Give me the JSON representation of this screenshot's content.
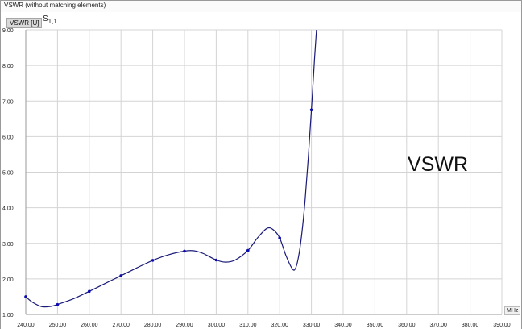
{
  "window": {
    "title": "VSWR (without matching elements)"
  },
  "badges": {
    "unit": "VSWR [U]",
    "trace_main": "S",
    "trace_sub": "1,1",
    "x_unit": "MHz"
  },
  "annotation": {
    "text": "VSWR"
  },
  "colors": {
    "curve": "#1a1a78",
    "marker": "#0b0bb0",
    "grid": "#d4d4d4"
  },
  "chart_data": {
    "type": "line",
    "title": "VSWR (without matching elements)",
    "ylabel": "VSWR [U]",
    "xlabel": "MHz",
    "xlim": [
      240,
      390
    ],
    "ylim": [
      1,
      9
    ],
    "grid": true,
    "x_ticks": [
      "240.00",
      "250.00",
      "260.00",
      "270.00",
      "280.00",
      "290.00",
      "300.00",
      "310.00",
      "320.00",
      "330.00",
      "340.00",
      "350.00",
      "360.00",
      "370.00",
      "380.00",
      "390.00"
    ],
    "y_ticks": [
      "9.00",
      "8.00",
      "7.00",
      "6.00",
      "5.00",
      "4.00",
      "3.00",
      "2.00",
      "1.00"
    ],
    "series": [
      {
        "name": "S1,1",
        "curve": [
          [
            240,
            1.5
          ],
          [
            242,
            1.35
          ],
          [
            245,
            1.22
          ],
          [
            248,
            1.23
          ],
          [
            250,
            1.28
          ],
          [
            255,
            1.44
          ],
          [
            260,
            1.65
          ],
          [
            265,
            1.87
          ],
          [
            270,
            2.09
          ],
          [
            275,
            2.31
          ],
          [
            280,
            2.52
          ],
          [
            285,
            2.68
          ],
          [
            290,
            2.78
          ],
          [
            293,
            2.79
          ],
          [
            296,
            2.71
          ],
          [
            300,
            2.53
          ],
          [
            303,
            2.47
          ],
          [
            306,
            2.53
          ],
          [
            310,
            2.8
          ],
          [
            313,
            3.15
          ],
          [
            316,
            3.42
          ],
          [
            318,
            3.38
          ],
          [
            320,
            3.15
          ],
          [
            322,
            2.65
          ],
          [
            324,
            2.28
          ],
          [
            325,
            2.3
          ],
          [
            326,
            2.65
          ],
          [
            327,
            3.3
          ],
          [
            328,
            4.2
          ],
          [
            329,
            5.4
          ],
          [
            330,
            6.75
          ],
          [
            331,
            8.2
          ],
          [
            331.6,
            9.0
          ]
        ],
        "markers": [
          [
            240,
            1.5
          ],
          [
            250,
            1.28
          ],
          [
            260,
            1.65
          ],
          [
            270,
            2.09
          ],
          [
            280,
            2.52
          ],
          [
            290,
            2.78
          ],
          [
            300,
            2.53
          ],
          [
            310,
            2.8
          ],
          [
            320,
            3.15
          ],
          [
            330,
            6.75
          ]
        ]
      }
    ]
  }
}
